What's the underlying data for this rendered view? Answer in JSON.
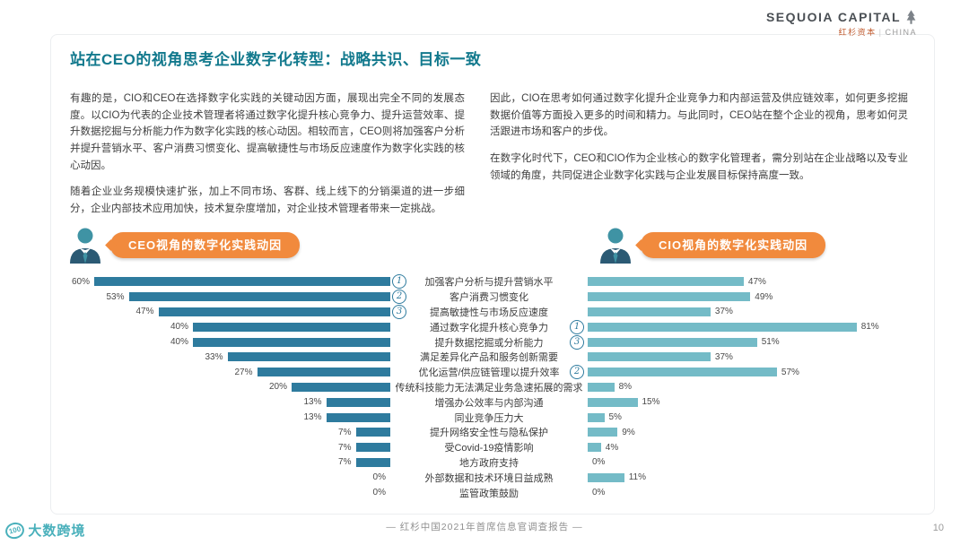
{
  "header": {
    "logo_main": "SEQUOIA CAPITAL",
    "logo_cn": "红杉资本",
    "logo_divider": "|",
    "logo_country": "CHINA"
  },
  "title": "站在CEO的视角思考企业数字化转型：战略共识、目标一致",
  "body": {
    "left_p1": "有趣的是，CIO和CEO在选择数字化实践的关键动因方面，展现出完全不同的发展态度。以CIO为代表的企业技术管理者将通过数字化提升核心竞争力、提升运营效率、提升数据挖掘与分析能力作为数字化实践的核心动因。相较而言，CEO则将加强客户分析并提升营销水平、客户消费习惯变化、提高敏捷性与市场反应速度作为数字化实践的核心动因。",
    "left_p2": "随着企业业务规模快速扩张，加上不同市场、客群、线上线下的分销渠道的进一步细分，企业内部技术应用加快，技术复杂度增加，对企业技术管理者带来一定挑战。",
    "right_p1": "因此，CIO在思考如何通过数字化提升企业竞争力和内部运营及供应链效率，如何更多挖掘数据价值等方面投入更多的时间和精力。与此同时，CEO站在整个企业的视角，思考如何灵活跟进市场和客户的步伐。",
    "right_p2": "在数字化时代下，CEO和CIO作为企业核心的数字化管理者，需分别站在企业战略以及专业领域的角度，共同促进企业数字化实践与企业发展目标保持高度一致。"
  },
  "chart_data": {
    "type": "bar",
    "orientation": "horizontal-mirrored",
    "left_header": "CEO视角的数字化实践动因",
    "right_header": "CIO视角的数字化实践动因",
    "unit": "%",
    "xlim": [
      0,
      85
    ],
    "categories": [
      "加强客户分析与提升营销水平",
      "客户消费习惯变化",
      "提高敏捷性与市场反应速度",
      "通过数字化提升核心竞争力",
      "提升数据挖掘或分析能力",
      "满足差异化产品和服务创新需要",
      "优化运营/供应链管理以提升效率",
      "传统科技能力无法满足业务急速拓展的需求",
      "增强办公效率与内部沟通",
      "同业竞争压力大",
      "提升网络安全性与隐私保护",
      "受Covid-19疫情影响",
      "地方政府支持",
      "外部数据和技术环境日益成熟",
      "监管政策鼓励"
    ],
    "series": [
      {
        "name": "CEO",
        "color": "#2e7b9e",
        "values": [
          60,
          53,
          47,
          40,
          40,
          33,
          27,
          20,
          13,
          13,
          7,
          7,
          7,
          0,
          0
        ]
      },
      {
        "name": "CIO",
        "color": "#74bbc7",
        "values": [
          47,
          49,
          37,
          81,
          51,
          37,
          57,
          8,
          15,
          5,
          9,
          4,
          0,
          11,
          0
        ]
      }
    ],
    "ceo_top_ranks": [
      "1",
      "2",
      "3",
      "",
      "",
      "",
      "",
      "",
      "",
      "",
      "",
      "",
      "",
      "",
      ""
    ],
    "cio_top_ranks": [
      "",
      "",
      "",
      "1",
      "3",
      "",
      "2",
      "",
      "",
      "",
      "",
      "",
      "",
      "",
      ""
    ]
  },
  "footer": {
    "source": "— 红杉中国2021年首席信息官调查报告 —",
    "page": "10",
    "watermark_badge": "100",
    "watermark_text": "大数跨境"
  },
  "colors": {
    "title": "#12798d",
    "accent_orange": "#f18a3d",
    "ceo_bar": "#2e7b9e",
    "cio_bar": "#74bbc7"
  }
}
